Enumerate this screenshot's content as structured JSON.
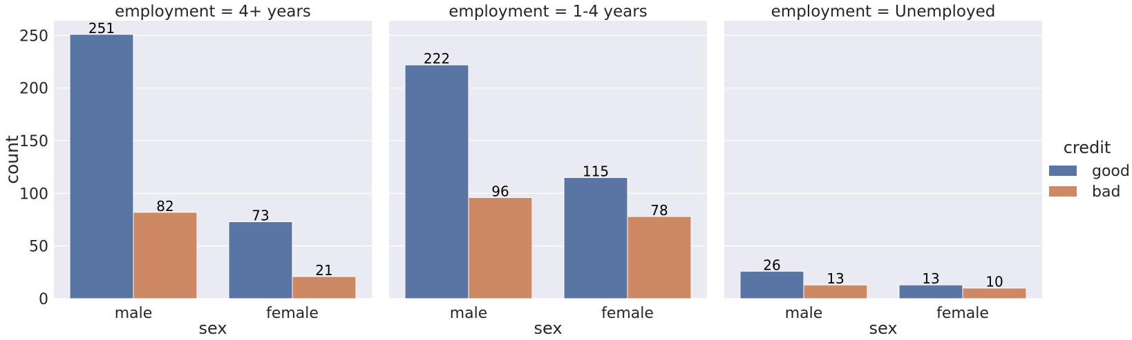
{
  "chart_data": {
    "type": "bar",
    "facet_variable": "employment",
    "facets": [
      {
        "title": "employment = 4+ years",
        "series": [
          {
            "name": "good",
            "values": [
              251,
              73
            ]
          },
          {
            "name": "bad",
            "values": [
              82,
              21
            ]
          }
        ]
      },
      {
        "title": "employment = 1-4 years",
        "series": [
          {
            "name": "good",
            "values": [
              222,
              115
            ]
          },
          {
            "name": "bad",
            "values": [
              96,
              78
            ]
          }
        ]
      },
      {
        "title": "employment = Unemployed",
        "series": [
          {
            "name": "good",
            "values": [
              26,
              13
            ]
          },
          {
            "name": "bad",
            "values": [
              13,
              10
            ]
          }
        ]
      }
    ],
    "categories": [
      "male",
      "female"
    ],
    "xlabel": "sex",
    "ylabel": "count",
    "ylim": [
      0,
      264
    ],
    "yticks": [
      0,
      50,
      100,
      150,
      200,
      250
    ],
    "grid": true,
    "sharey": true,
    "legend": {
      "title": "credit",
      "position": "right",
      "entries": [
        "good",
        "bad"
      ]
    },
    "colors": {
      "good": "#5975a4",
      "bad": "#cc8963",
      "background": "#eaeaf2",
      "grid": "#ffffff"
    }
  }
}
